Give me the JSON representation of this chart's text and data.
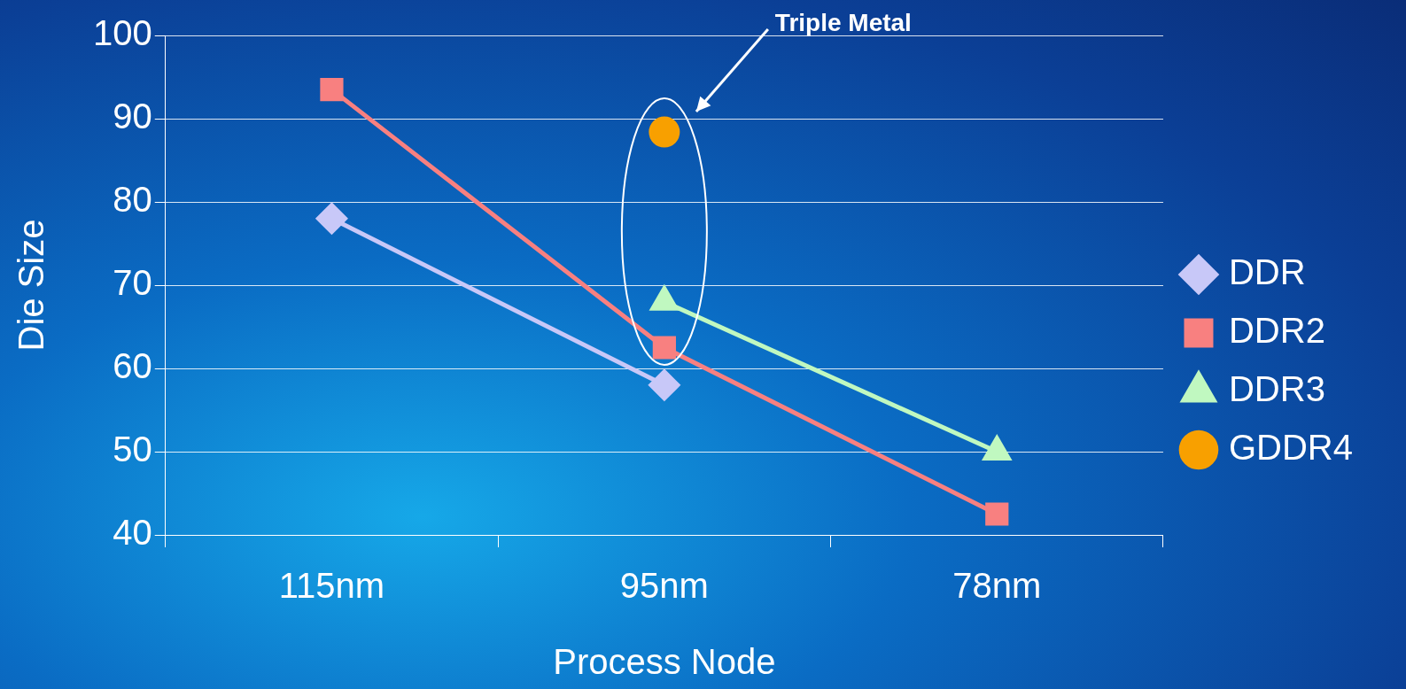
{
  "chart_data": {
    "type": "line",
    "xlabel": "Process Node",
    "ylabel": "Die Size",
    "categories": [
      "115nm",
      "95nm",
      "78nm"
    ],
    "series": [
      {
        "name": "DDR",
        "color": "#c8c8f8",
        "marker": "diamond",
        "values": [
          78,
          58,
          null
        ]
      },
      {
        "name": "DDR2",
        "color": "#f88080",
        "marker": "square",
        "values": [
          93.5,
          62.5,
          42.5
        ]
      },
      {
        "name": "DDR3",
        "color": "#c0f8c0",
        "marker": "triangle",
        "values": [
          null,
          68,
          50
        ]
      },
      {
        "name": "GDDR4",
        "color": "#f8a000",
        "marker": "circle",
        "values": [
          null,
          88.4,
          null
        ]
      }
    ],
    "ylim": [
      40,
      100
    ],
    "yticks": [
      40,
      50,
      60,
      70,
      80,
      90,
      100
    ],
    "grid": "y",
    "legend": "right",
    "annotations": [
      "Triple Metal"
    ]
  }
}
